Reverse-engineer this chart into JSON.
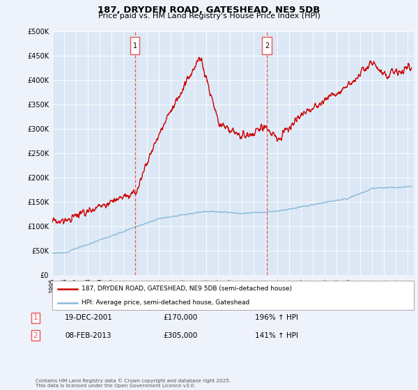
{
  "title1": "187, DRYDEN ROAD, GATESHEAD, NE9 5DB",
  "title2": "Price paid vs. HM Land Registry's House Price Index (HPI)",
  "bg_color": "#eef2fa",
  "plot_bg": "#dce8f5",
  "red_color": "#cc0000",
  "blue_color": "#88b8d8",
  "vline_color": "#e85555",
  "ylim": [
    0,
    500000
  ],
  "yticks": [
    0,
    50000,
    100000,
    150000,
    200000,
    250000,
    300000,
    350000,
    400000,
    450000,
    500000
  ],
  "ytick_labels": [
    "£0",
    "£50K",
    "£100K",
    "£150K",
    "£200K",
    "£250K",
    "£300K",
    "£350K",
    "£400K",
    "£450K",
    "£500K"
  ],
  "sale1_year": 2001.97,
  "sale1_price": 170000,
  "sale1_label": "1",
  "sale1_date": "19-DEC-2001",
  "sale1_hpi": "196% ↑ HPI",
  "sale2_year": 2013.1,
  "sale2_price": 305000,
  "sale2_label": "2",
  "sale2_date": "08-FEB-2013",
  "sale2_hpi": "141% ↑ HPI",
  "legend_label1": "187, DRYDEN ROAD, GATESHEAD, NE9 5DB (semi-detached house)",
  "legend_label2": "HPI: Average price, semi-detached house, Gateshead",
  "footer": "Contains HM Land Registry data © Crown copyright and database right 2025.\nThis data is licensed under the Open Government Licence v3.0.",
  "xmin": 1995,
  "xmax": 2025.5
}
